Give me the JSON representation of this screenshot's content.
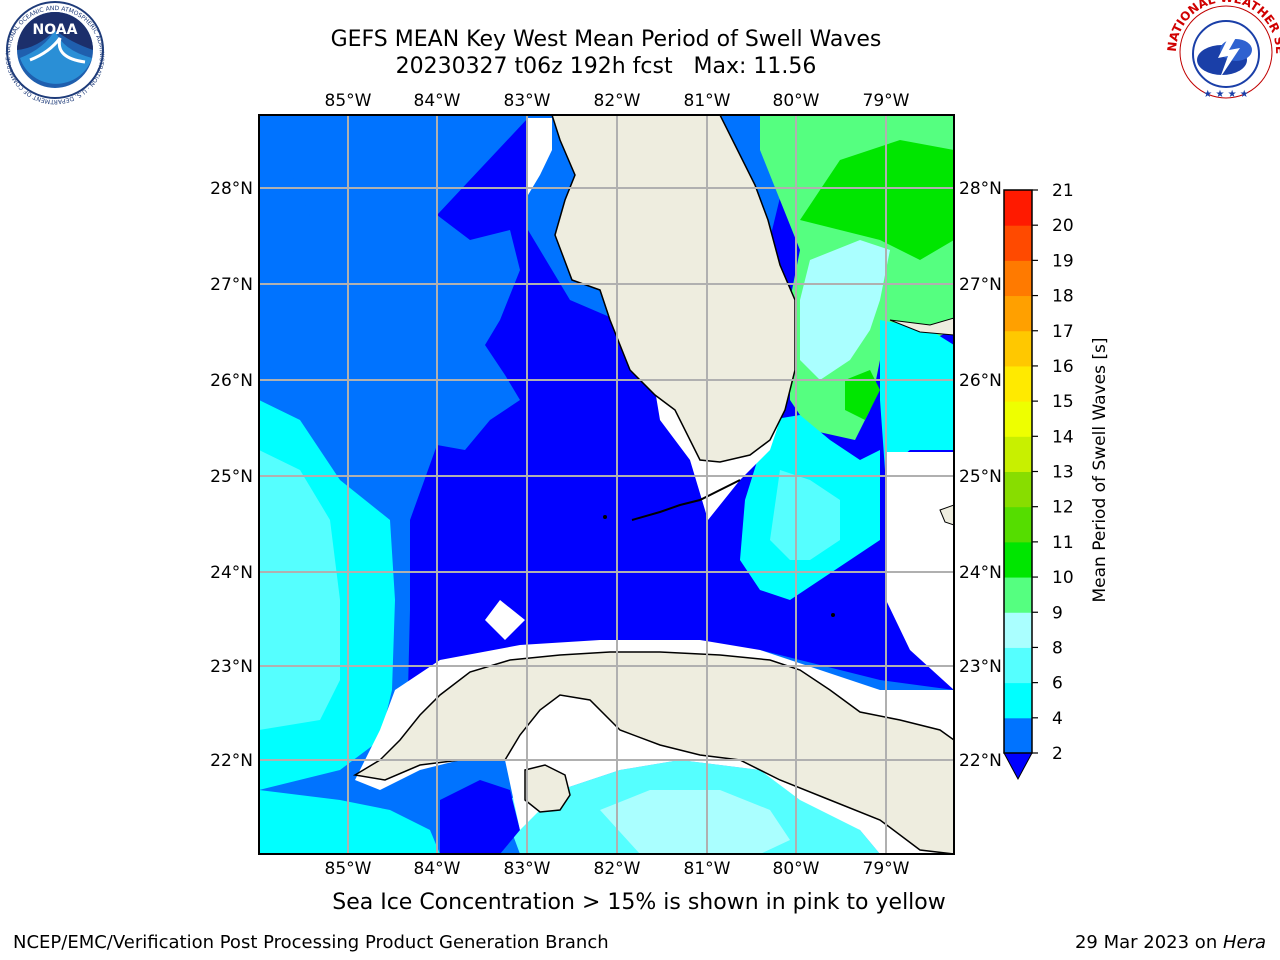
{
  "header": {
    "title_line1": "GEFS MEAN Key West Mean Period of Swell Waves",
    "title_line2": "20230327 t06z 192h fcst   Max: 11.56"
  },
  "map": {
    "lon_labels": [
      "85°W",
      "84°W",
      "83°W",
      "82°W",
      "81°W",
      "80°W",
      "79°W"
    ],
    "lat_labels": [
      "28°N",
      "27°N",
      "26°N",
      "25°N",
      "24°N",
      "23°N",
      "22°N"
    ],
    "land_color": "#eeeddf",
    "grid_color": "#b0b0b0"
  },
  "colorbar": {
    "label": "Mean Period of Swell Waves [s]",
    "ticks": [
      "2",
      "4",
      "6",
      "8",
      "9",
      "10",
      "11",
      "12",
      "13",
      "14",
      "15",
      "16",
      "17",
      "18",
      "19",
      "20",
      "21"
    ],
    "colors": [
      "#0000ff",
      "#0073ff",
      "#00ffff",
      "#55ffff",
      "#aaffff",
      "#55ff80",
      "#00e600",
      "#55dd00",
      "#88dd00",
      "#c8f000",
      "#eeff00",
      "#ffea00",
      "#ffc800",
      "#ffa000",
      "#ff7a00",
      "#ff4a00",
      "#ff1a00",
      "#ff0000"
    ]
  },
  "footer": {
    "note": "Sea Ice Concentration > 15% is shown in pink to yellow",
    "credit": "NCEP/EMC/Verification Post Processing Product Generation Branch",
    "date": "29 Mar 2023 on ",
    "machine": "Hera"
  },
  "logos": {
    "left": "NOAA",
    "left_ring": "NATIONAL OCEANIC AND ATMOSPHERIC ADMINISTRATION · U.S. DEPARTMENT OF COMMERCE",
    "right_ring": "NATIONAL WEATHER SERVICE"
  }
}
